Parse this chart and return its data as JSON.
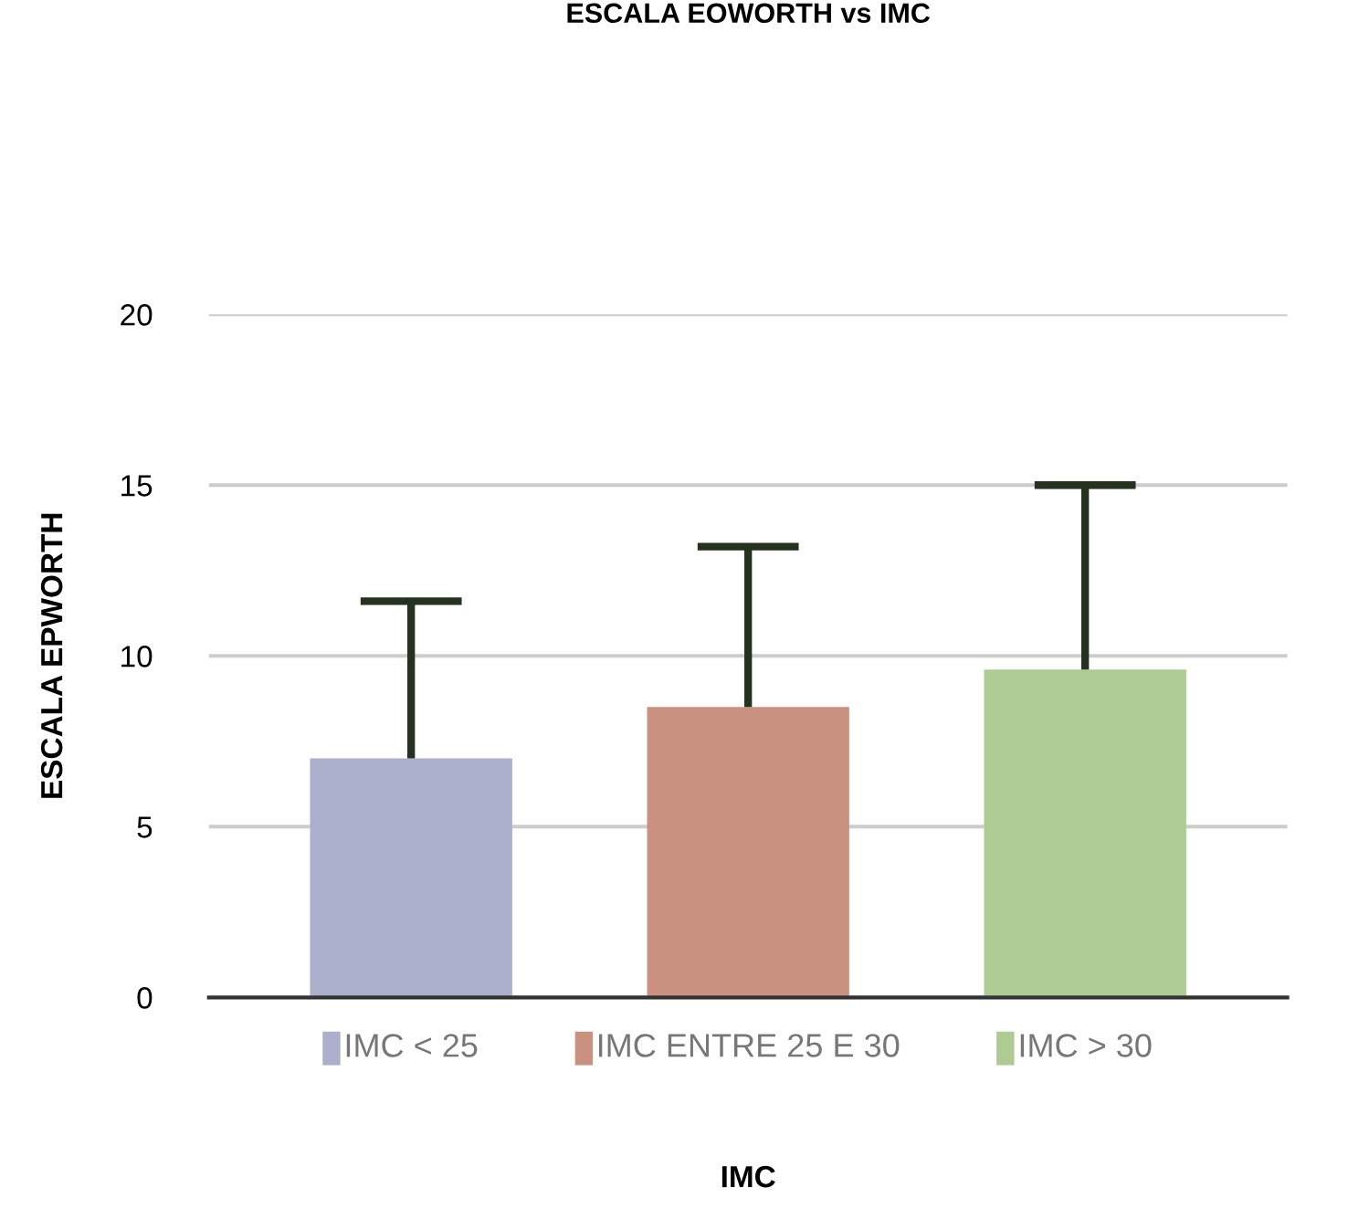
{
  "chart_data": {
    "type": "bar",
    "title": "ESCALA EOWORTH vs IMC",
    "xlabel": "IMC",
    "ylabel": "ESCALA EPWORTH",
    "categories": [
      "IMC < 25",
      "IMC ENTRE 25 E 30",
      "IMC > 30"
    ],
    "values": [
      7.0,
      8.5,
      9.6
    ],
    "colors": [
      "#abafcc",
      "#c99180",
      "#afcb94"
    ],
    "errors": [
      [
        7.0,
        11.6
      ],
      [
        8.5,
        13.2
      ],
      [
        9.6,
        15.0
      ]
    ],
    "ylim": [
      0,
      20
    ],
    "yticks": [
      0,
      5,
      10,
      15,
      20
    ],
    "grid": "y"
  }
}
